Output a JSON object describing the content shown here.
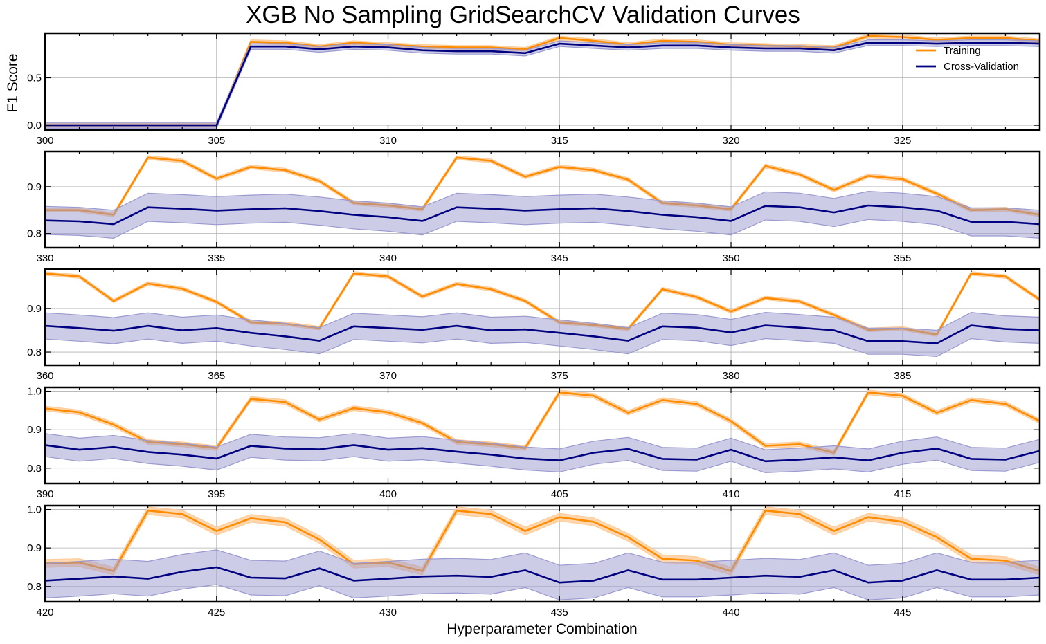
{
  "title": "XGB No Sampling GridSearchCV Validation Curves",
  "ylabel": "F1 Score",
  "xlabel": "Hyperparameter Combination",
  "colors": {
    "training": "#ff8c00",
    "training_band": "#ffcc99",
    "cv": "#000080",
    "cv_band": "#9a9ad0",
    "grid": "#b0b0b0"
  },
  "legend": {
    "placement": "top-right",
    "items": [
      {
        "label": "Training",
        "color": "#ff8c00"
      },
      {
        "label": "Cross-Validation",
        "color": "#000080"
      }
    ]
  },
  "chart_data": [
    {
      "type": "line",
      "x_start": 300,
      "xlim": [
        300,
        329
      ],
      "xticks": [
        300,
        305,
        310,
        315,
        320,
        325
      ],
      "ylim": [
        -0.05,
        0.97
      ],
      "yticks": [
        0.0,
        0.5
      ],
      "ytick_labels": [
        "0.0",
        "0.5"
      ],
      "series": [
        {
          "name": "Training",
          "values": [
            0,
            0,
            0,
            0,
            0,
            0,
            0.88,
            0.87,
            0.83,
            0.87,
            0.85,
            0.83,
            0.82,
            0.82,
            0.8,
            0.92,
            0.89,
            0.85,
            0.89,
            0.88,
            0.85,
            0.84,
            0.83,
            0.82,
            0.94,
            0.93,
            0.9,
            0.92,
            0.92,
            0.89
          ],
          "band": 0.02
        },
        {
          "name": "Cross-Validation",
          "values": [
            0,
            0,
            0,
            0,
            0,
            0,
            0.83,
            0.83,
            0.8,
            0.83,
            0.82,
            0.79,
            0.78,
            0.78,
            0.76,
            0.86,
            0.84,
            0.82,
            0.84,
            0.84,
            0.82,
            0.81,
            0.81,
            0.79,
            0.87,
            0.87,
            0.86,
            0.87,
            0.87,
            0.86
          ],
          "band": 0.03
        }
      ]
    },
    {
      "type": "line",
      "x_start": 330,
      "xlim": [
        330,
        359
      ],
      "xticks": [
        330,
        335,
        340,
        345,
        350,
        355
      ],
      "ylim": [
        0.77,
        0.975
      ],
      "yticks": [
        0.8,
        0.9
      ],
      "ytick_labels": [
        "0.8",
        "0.9"
      ],
      "series": [
        {
          "name": "Training",
          "values": [
            0.85,
            0.85,
            0.84,
            0.962,
            0.955,
            0.917,
            0.942,
            0.935,
            0.912,
            0.865,
            0.86,
            0.852,
            0.962,
            0.955,
            0.921,
            0.942,
            0.935,
            0.915,
            0.865,
            0.86,
            0.852,
            0.944,
            0.926,
            0.893,
            0.923,
            0.916,
            0.885,
            0.85,
            0.852,
            0.84
          ],
          "band": 0.004
        },
        {
          "name": "Cross-Validation",
          "values": [
            0.828,
            0.826,
            0.82,
            0.856,
            0.853,
            0.849,
            0.852,
            0.854,
            0.848,
            0.84,
            0.835,
            0.827,
            0.856,
            0.853,
            0.849,
            0.852,
            0.854,
            0.848,
            0.84,
            0.835,
            0.827,
            0.859,
            0.856,
            0.845,
            0.86,
            0.856,
            0.849,
            0.825,
            0.825,
            0.82
          ],
          "band": 0.03
        }
      ]
    },
    {
      "type": "line",
      "x_start": 360,
      "xlim": [
        360,
        389
      ],
      "xticks": [
        360,
        365,
        370,
        375,
        380,
        385
      ],
      "ylim": [
        0.77,
        0.99
      ],
      "yticks": [
        0.8,
        0.9
      ],
      "ytick_labels": [
        "0.8",
        "0.9"
      ],
      "series": [
        {
          "name": "Training",
          "values": [
            0.98,
            0.973,
            0.917,
            0.957,
            0.945,
            0.915,
            0.868,
            0.865,
            0.855,
            0.98,
            0.973,
            0.927,
            0.956,
            0.944,
            0.917,
            0.868,
            0.862,
            0.853,
            0.944,
            0.926,
            0.893,
            0.924,
            0.916,
            0.885,
            0.851,
            0.854,
            0.84,
            0.98,
            0.973,
            0.92
          ],
          "band": 0.004
        },
        {
          "name": "Cross-Validation",
          "values": [
            0.86,
            0.855,
            0.849,
            0.86,
            0.85,
            0.855,
            0.844,
            0.836,
            0.826,
            0.859,
            0.855,
            0.851,
            0.86,
            0.85,
            0.852,
            0.844,
            0.836,
            0.826,
            0.859,
            0.856,
            0.845,
            0.861,
            0.856,
            0.85,
            0.825,
            0.825,
            0.82,
            0.861,
            0.853,
            0.85
          ],
          "band": 0.03
        }
      ]
    },
    {
      "type": "line",
      "x_start": 390,
      "xlim": [
        390,
        419
      ],
      "xticks": [
        390,
        395,
        400,
        405,
        410,
        415
      ],
      "ylim": [
        0.76,
        1.01
      ],
      "yticks": [
        0.8,
        0.9,
        1.0
      ],
      "ytick_labels": [
        "0.8",
        "0.9",
        "1.0"
      ],
      "series": [
        {
          "name": "Training",
          "values": [
            0.955,
            0.945,
            0.913,
            0.868,
            0.862,
            0.852,
            0.98,
            0.972,
            0.926,
            0.956,
            0.945,
            0.917,
            0.868,
            0.862,
            0.852,
            0.997,
            0.988,
            0.944,
            0.977,
            0.967,
            0.922,
            0.858,
            0.862,
            0.84,
            0.997,
            0.988,
            0.944,
            0.977,
            0.967,
            0.922
          ],
          "band": 0.006
        },
        {
          "name": "Cross-Validation",
          "values": [
            0.86,
            0.848,
            0.855,
            0.842,
            0.835,
            0.825,
            0.858,
            0.851,
            0.849,
            0.86,
            0.848,
            0.852,
            0.843,
            0.835,
            0.825,
            0.82,
            0.84,
            0.85,
            0.824,
            0.822,
            0.848,
            0.818,
            0.822,
            0.828,
            0.82,
            0.84,
            0.851,
            0.824,
            0.822,
            0.845
          ],
          "band": 0.03
        }
      ]
    },
    {
      "type": "line",
      "x_start": 420,
      "xlim": [
        420,
        449
      ],
      "xticks": [
        420,
        425,
        430,
        435,
        440,
        445
      ],
      "ylim": [
        0.76,
        1.01
      ],
      "yticks": [
        0.8,
        0.9,
        1.0
      ],
      "ytick_labels": [
        "0.8",
        "0.9",
        "1.0"
      ],
      "series": [
        {
          "name": "Training",
          "values": [
            0.86,
            0.862,
            0.84,
            0.997,
            0.988,
            0.944,
            0.977,
            0.967,
            0.922,
            0.858,
            0.862,
            0.84,
            0.997,
            0.988,
            0.944,
            0.98,
            0.968,
            0.928,
            0.872,
            0.867,
            0.84,
            0.997,
            0.988,
            0.944,
            0.98,
            0.968,
            0.928,
            0.872,
            0.867,
            0.84
          ],
          "band": 0.01
        },
        {
          "name": "Cross-Validation",
          "values": [
            0.815,
            0.82,
            0.826,
            0.82,
            0.838,
            0.85,
            0.823,
            0.821,
            0.847,
            0.815,
            0.82,
            0.826,
            0.828,
            0.825,
            0.842,
            0.81,
            0.815,
            0.842,
            0.818,
            0.818,
            0.823,
            0.828,
            0.825,
            0.842,
            0.81,
            0.815,
            0.842,
            0.818,
            0.818,
            0.823
          ],
          "band": 0.045
        }
      ]
    }
  ]
}
